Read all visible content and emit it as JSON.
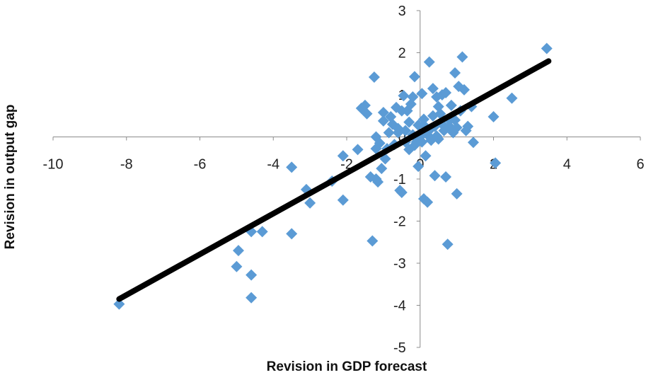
{
  "chart_data": {
    "type": "scatter",
    "xlabel": "Revision in GDP forecast",
    "ylabel": "Revision in output gap",
    "xlim": [
      -10,
      6
    ],
    "ylim": [
      -5,
      3
    ],
    "xticks": [
      "-10",
      "-8",
      "-6",
      "-4",
      "-2",
      "0",
      "2",
      "4",
      "6"
    ],
    "yticks": [
      "3",
      "2",
      "1",
      "0",
      "-1",
      "-2",
      "-3",
      "-4",
      "-5"
    ],
    "grid": false,
    "legend": "none",
    "marker_color": "#5B9BD5",
    "trendline_color": "#000000",
    "trendline": {
      "x": [
        -8.2,
        3.5
      ],
      "y": [
        -3.85,
        1.8
      ]
    },
    "points": [
      [
        -8.2,
        -3.97
      ],
      [
        -4.95,
        -2.7
      ],
      [
        -5.0,
        -3.08
      ],
      [
        -4.6,
        -3.28
      ],
      [
        -4.6,
        -3.82
      ],
      [
        -4.6,
        -2.25
      ],
      [
        -4.3,
        -2.25
      ],
      [
        -3.5,
        -2.3
      ],
      [
        -3.5,
        -0.72
      ],
      [
        -3.1,
        -1.25
      ],
      [
        -3.0,
        -1.57
      ],
      [
        -2.4,
        -1.05
      ],
      [
        -2.1,
        -1.5
      ],
      [
        -2.1,
        -0.45
      ],
      [
        -1.7,
        -0.3
      ],
      [
        -1.6,
        0.68
      ],
      [
        -1.5,
        0.75
      ],
      [
        -1.45,
        0.55
      ],
      [
        -1.35,
        -0.95
      ],
      [
        -1.3,
        -2.47
      ],
      [
        -1.25,
        1.42
      ],
      [
        -1.2,
        0.0
      ],
      [
        -1.2,
        -0.28
      ],
      [
        -1.2,
        -1.0
      ],
      [
        -1.15,
        -1.07
      ],
      [
        -1.1,
        -0.15
      ],
      [
        -1.05,
        -0.75
      ],
      [
        -1.0,
        0.58
      ],
      [
        -1.0,
        0.38
      ],
      [
        -0.95,
        -0.52
      ],
      [
        -0.9,
        -0.28
      ],
      [
        -0.85,
        0.1
      ],
      [
        -0.8,
        0.48
      ],
      [
        -0.75,
        0.3
      ],
      [
        -0.7,
        -0.18
      ],
      [
        -0.65,
        0.7
      ],
      [
        -0.6,
        0.1
      ],
      [
        -0.6,
        0.2
      ],
      [
        -0.55,
        -1.27
      ],
      [
        -0.5,
        -1.32
      ],
      [
        -0.5,
        0.62
      ],
      [
        -0.45,
        0.98
      ],
      [
        -0.4,
        0.15
      ],
      [
        -0.4,
        -0.12
      ],
      [
        -0.35,
        0.62
      ],
      [
        -0.3,
        -0.3
      ],
      [
        -0.3,
        0.35
      ],
      [
        -0.25,
        0.78
      ],
      [
        -0.2,
        0.95
      ],
      [
        -0.2,
        0.05
      ],
      [
        -0.15,
        1.43
      ],
      [
        -0.15,
        -0.2
      ],
      [
        -0.1,
        -0.12
      ],
      [
        -0.05,
        0.28
      ],
      [
        -0.05,
        -0.7
      ],
      [
        0.0,
        0.0
      ],
      [
        0.05,
        -0.12
      ],
      [
        0.05,
        1.03
      ],
      [
        0.1,
        0.1
      ],
      [
        0.1,
        0.28
      ],
      [
        0.1,
        0.42
      ],
      [
        0.1,
        -1.47
      ],
      [
        0.15,
        -0.45
      ],
      [
        0.2,
        -1.55
      ],
      [
        0.2,
        0.05
      ],
      [
        0.25,
        1.78
      ],
      [
        0.3,
        0.2
      ],
      [
        0.3,
        -0.08
      ],
      [
        0.35,
        1.15
      ],
      [
        0.35,
        0.5
      ],
      [
        0.4,
        0.25
      ],
      [
        0.4,
        -0.92
      ],
      [
        0.45,
        0.95
      ],
      [
        0.45,
        0.02
      ],
      [
        0.5,
        0.72
      ],
      [
        0.5,
        -0.05
      ],
      [
        0.55,
        0.55
      ],
      [
        0.6,
        0.3
      ],
      [
        0.6,
        1.0
      ],
      [
        0.65,
        0.15
      ],
      [
        0.7,
        1.05
      ],
      [
        0.7,
        -0.95
      ],
      [
        0.75,
        -2.55
      ],
      [
        0.8,
        0.4
      ],
      [
        0.8,
        0.25
      ],
      [
        0.85,
        0.75
      ],
      [
        0.9,
        0.1
      ],
      [
        0.95,
        0.4
      ],
      [
        0.95,
        1.52
      ],
      [
        1.0,
        0.22
      ],
      [
        1.0,
        -1.35
      ],
      [
        1.05,
        1.2
      ],
      [
        1.1,
        0.62
      ],
      [
        1.15,
        1.9
      ],
      [
        1.2,
        1.12
      ],
      [
        1.25,
        0.15
      ],
      [
        1.3,
        0.25
      ],
      [
        1.4,
        0.72
      ],
      [
        1.45,
        -0.13
      ],
      [
        2.0,
        0.48
      ],
      [
        2.05,
        -0.62
      ],
      [
        2.5,
        0.92
      ],
      [
        3.45,
        2.1
      ]
    ]
  }
}
